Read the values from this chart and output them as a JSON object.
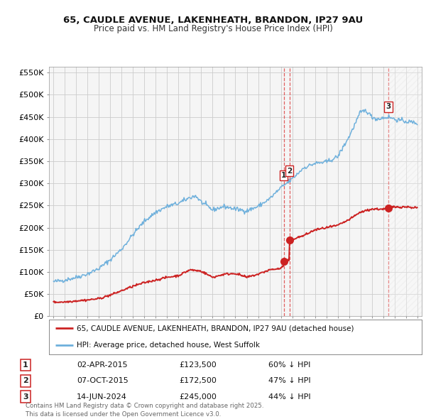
{
  "title1": "65, CAUDLE AVENUE, LAKENHEATH, BRANDON, IP27 9AU",
  "title2": "Price paid vs. HM Land Registry's House Price Index (HPI)",
  "hpi_color": "#6eb0dc",
  "price_color": "#cc2222",
  "vline_color": "#dd4444",
  "bg_color": "#ffffff",
  "grid_color": "#cccccc",
  "plot_bg": "#f5f5f5",
  "ylim": [
    0,
    562500
  ],
  "yticks": [
    0,
    50000,
    100000,
    150000,
    200000,
    250000,
    300000,
    350000,
    400000,
    450000,
    500000,
    550000
  ],
  "xlim_min": 1994.6,
  "xlim_max": 2027.4,
  "transactions": [
    {
      "label": "1",
      "date": "02-APR-2015",
      "x": 2015.25,
      "price": 123500
    },
    {
      "label": "2",
      "date": "07-OCT-2015",
      "x": 2015.75,
      "price": 172500
    },
    {
      "label": "3",
      "date": "14-JUN-2024",
      "x": 2024.45,
      "price": 245000
    }
  ],
  "legend_entries": [
    "65, CAUDLE AVENUE, LAKENHEATH, BRANDON, IP27 9AU (detached house)",
    "HPI: Average price, detached house, West Suffolk"
  ],
  "table_rows": [
    [
      "1",
      "02-APR-2015",
      "£123,500",
      "60% ↓ HPI"
    ],
    [
      "2",
      "07-OCT-2015",
      "£172,500",
      "47% ↓ HPI"
    ],
    [
      "3",
      "14-JUN-2024",
      "£245,000",
      "44% ↓ HPI"
    ]
  ],
  "footer": "Contains HM Land Registry data © Crown copyright and database right 2025.\nThis data is licensed under the Open Government Licence v3.0.",
  "hpi_knots": [
    [
      1995,
      78000
    ],
    [
      1996,
      82000
    ],
    [
      1997,
      88000
    ],
    [
      1998,
      96000
    ],
    [
      1999,
      108000
    ],
    [
      2000,
      128000
    ],
    [
      2001,
      152000
    ],
    [
      2002,
      185000
    ],
    [
      2003,
      215000
    ],
    [
      2004,
      235000
    ],
    [
      2005,
      248000
    ],
    [
      2006,
      255000
    ],
    [
      2007,
      268000
    ],
    [
      2007.5,
      272000
    ],
    [
      2008,
      258000
    ],
    [
      2009,
      240000
    ],
    [
      2010,
      248000
    ],
    [
      2011,
      242000
    ],
    [
      2012,
      238000
    ],
    [
      2013,
      248000
    ],
    [
      2014,
      265000
    ],
    [
      2015,
      290000
    ],
    [
      2016,
      310000
    ],
    [
      2017,
      335000
    ],
    [
      2018,
      345000
    ],
    [
      2019,
      348000
    ],
    [
      2020,
      360000
    ],
    [
      2021,
      405000
    ],
    [
      2022,
      460000
    ],
    [
      2022.5,
      465000
    ],
    [
      2023,
      450000
    ],
    [
      2023.5,
      445000
    ],
    [
      2024,
      448000
    ],
    [
      2024.5,
      450000
    ],
    [
      2025,
      445000
    ],
    [
      2025.5,
      442000
    ],
    [
      2026,
      440000
    ],
    [
      2026.5,
      438000
    ],
    [
      2027,
      436000
    ]
  ],
  "price_knots": [
    [
      1995,
      32000
    ],
    [
      1996,
      32500
    ],
    [
      1997,
      35000
    ],
    [
      1998,
      37000
    ],
    [
      1999,
      40000
    ],
    [
      2000,
      48000
    ],
    [
      2001,
      58000
    ],
    [
      2002,
      68000
    ],
    [
      2003,
      76000
    ],
    [
      2004,
      82000
    ],
    [
      2005,
      88000
    ],
    [
      2006,
      92000
    ],
    [
      2007,
      105000
    ],
    [
      2008,
      102000
    ],
    [
      2009,
      88000
    ],
    [
      2010,
      95000
    ],
    [
      2011,
      97000
    ],
    [
      2012,
      88000
    ],
    [
      2013,
      95000
    ],
    [
      2014,
      105000
    ],
    [
      2015.0,
      108000
    ],
    [
      2015.24,
      115000
    ],
    [
      2015.25,
      123500
    ],
    [
      2015.26,
      125000
    ],
    [
      2015.74,
      126000
    ],
    [
      2015.75,
      172500
    ],
    [
      2016,
      174000
    ],
    [
      2017,
      182000
    ],
    [
      2018,
      195000
    ],
    [
      2019,
      200000
    ],
    [
      2020,
      205000
    ],
    [
      2021,
      218000
    ],
    [
      2022,
      235000
    ],
    [
      2023,
      242000
    ],
    [
      2024.0,
      242000
    ],
    [
      2024.44,
      242000
    ],
    [
      2024.45,
      245000
    ],
    [
      2025,
      247000
    ],
    [
      2026,
      247000
    ],
    [
      2026.5,
      246000
    ],
    [
      2027,
      245000
    ]
  ]
}
